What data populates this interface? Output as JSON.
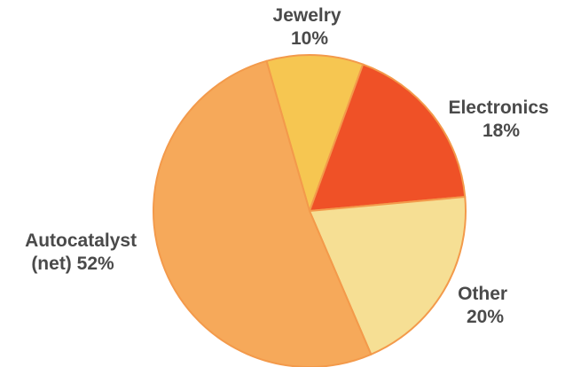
{
  "chart_data": {
    "type": "pie",
    "title": "",
    "slices": [
      {
        "label_lines": [
          "Jewelry",
          "10%"
        ],
        "value": 10,
        "color": "#F6C651"
      },
      {
        "label_lines": [
          "Electronics",
          "18%"
        ],
        "value": 18,
        "color": "#EF5127"
      },
      {
        "label_lines": [
          "Other",
          "20%"
        ],
        "value": 20,
        "color": "#F6DF94"
      },
      {
        "label_lines": [
          "Autocatalyst",
          "(net) 52%"
        ],
        "value": 52,
        "color": "#F6A95A"
      }
    ],
    "edge_color": "#F39A4B",
    "start_angle_deg": -16,
    "direction": "clockwise"
  }
}
